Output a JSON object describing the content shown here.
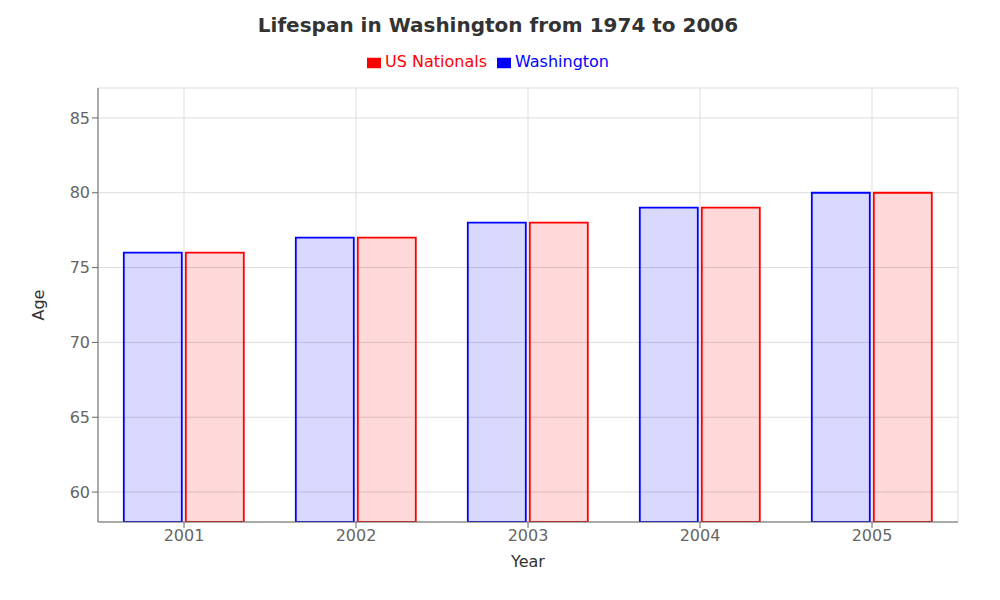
{
  "chart_data": {
    "type": "bar",
    "title": "Lifespan in Washington from 1974 to 2006",
    "xlabel": "Year",
    "ylabel": "Age",
    "categories": [
      2001,
      2002,
      2003,
      2004,
      2005
    ],
    "series": [
      {
        "name": "Washington",
        "color": "#0000ff",
        "values": [
          76,
          77,
          78,
          79,
          80
        ]
      },
      {
        "name": "US Nationals",
        "color": "#ff0000",
        "values": [
          76,
          77,
          78,
          79,
          80
        ]
      }
    ],
    "ylim": [
      58,
      87
    ],
    "yticks": [
      60,
      65,
      70,
      75,
      80,
      85
    ],
    "grid": true,
    "legend": "top"
  }
}
